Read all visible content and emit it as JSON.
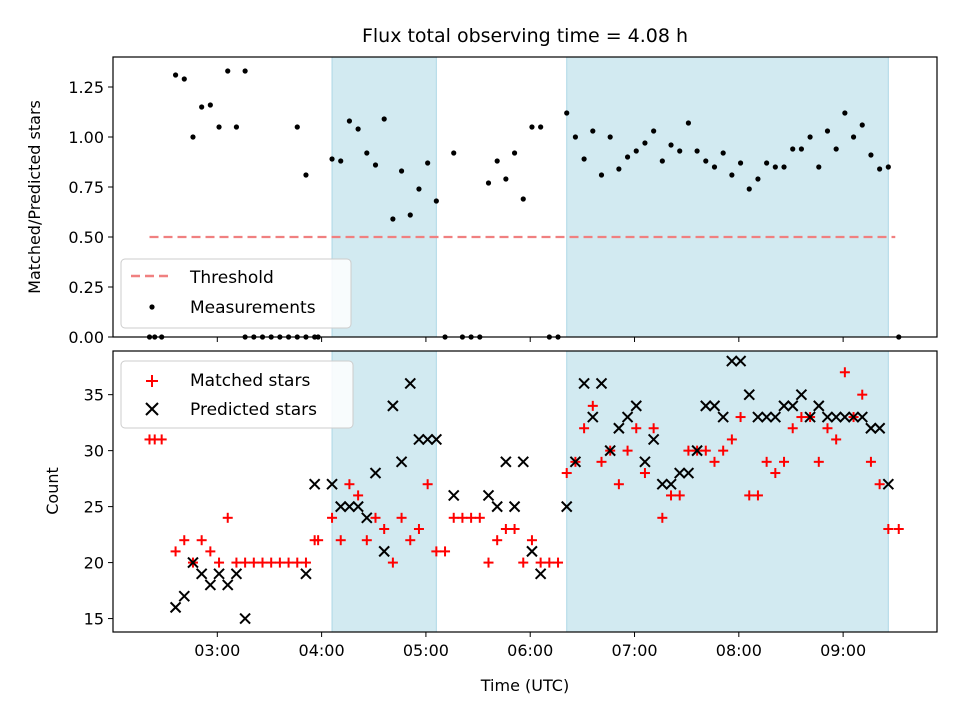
{
  "chart_data": [
    {
      "type": "scatter",
      "title": "Flux total observing time = 4.08 h",
      "xlabel": "",
      "ylabel": "Matched/Predicted stars",
      "ylim": [
        0,
        1.4
      ],
      "xlim": [
        "02:00",
        "09:54"
      ],
      "yticks": [
        "0.00",
        "0.25",
        "0.50",
        "0.75",
        "1.00",
        "1.25"
      ],
      "grid": false,
      "legend_position": "lower-left",
      "shaded_intervals": [
        [
          "04:06",
          "05:06"
        ],
        [
          "06:21",
          "09:26"
        ]
      ],
      "threshold": {
        "name": "Threshold",
        "value": 0.5,
        "x_start": "02:21",
        "x_end": "09:30",
        "color": "#f08080"
      },
      "series": [
        {
          "name": "Measurements",
          "color": "#000000",
          "points": [
            [
              "02:21",
              0
            ],
            [
              "02:24",
              0
            ],
            [
              "02:28",
              0
            ],
            [
              "02:36",
              1.31
            ],
            [
              "02:41",
              1.29
            ],
            [
              "02:46",
              1.0
            ],
            [
              "02:51",
              1.15
            ],
            [
              "02:56",
              1.16
            ],
            [
              "03:01",
              1.05
            ],
            [
              "03:06",
              1.33
            ],
            [
              "03:11",
              1.05
            ],
            [
              "03:16",
              1.33
            ],
            [
              "03:16",
              0
            ],
            [
              "03:21",
              0
            ],
            [
              "03:26",
              0
            ],
            [
              "03:31",
              0
            ],
            [
              "03:36",
              0
            ],
            [
              "03:41",
              0
            ],
            [
              "03:46",
              0
            ],
            [
              "03:51",
              0
            ],
            [
              "03:56",
              0
            ],
            [
              "03:58",
              0
            ],
            [
              "03:46",
              1.05
            ],
            [
              "03:51",
              0.81
            ],
            [
              "04:06",
              0.89
            ],
            [
              "04:11",
              0.88
            ],
            [
              "04:16",
              1.08
            ],
            [
              "04:21",
              1.04
            ],
            [
              "04:26",
              0.92
            ],
            [
              "04:31",
              0.86
            ],
            [
              "04:36",
              1.09
            ],
            [
              "04:41",
              0.59
            ],
            [
              "04:46",
              0.83
            ],
            [
              "04:51",
              0.61
            ],
            [
              "04:56",
              0.74
            ],
            [
              "05:01",
              0.87
            ],
            [
              "05:06",
              0.68
            ],
            [
              "05:11",
              0
            ],
            [
              "05:16",
              0.92
            ],
            [
              "05:21",
              0
            ],
            [
              "05:26",
              0
            ],
            [
              "05:31",
              0
            ],
            [
              "05:36",
              0.77
            ],
            [
              "05:41",
              0.88
            ],
            [
              "05:46",
              0.79
            ],
            [
              "05:51",
              0.92
            ],
            [
              "05:56",
              0.69
            ],
            [
              "06:01",
              1.05
            ],
            [
              "06:06",
              1.05
            ],
            [
              "06:11",
              0
            ],
            [
              "06:16",
              0
            ],
            [
              "06:21",
              1.12
            ],
            [
              "06:26",
              1.0
            ],
            [
              "06:31",
              0.89
            ],
            [
              "06:36",
              1.03
            ],
            [
              "06:41",
              0.81
            ],
            [
              "06:46",
              1.0
            ],
            [
              "06:51",
              0.84
            ],
            [
              "06:56",
              0.9
            ],
            [
              "07:01",
              0.93
            ],
            [
              "07:06",
              0.97
            ],
            [
              "07:11",
              1.03
            ],
            [
              "07:16",
              0.88
            ],
            [
              "07:21",
              0.96
            ],
            [
              "07:26",
              0.93
            ],
            [
              "07:31",
              1.07
            ],
            [
              "07:36",
              0.93
            ],
            [
              "07:41",
              0.88
            ],
            [
              "07:46",
              0.85
            ],
            [
              "07:51",
              0.92
            ],
            [
              "07:56",
              0.81
            ],
            [
              "08:01",
              0.87
            ],
            [
              "08:06",
              0.74
            ],
            [
              "08:11",
              0.79
            ],
            [
              "08:16",
              0.87
            ],
            [
              "08:21",
              0.85
            ],
            [
              "08:26",
              0.85
            ],
            [
              "08:31",
              0.94
            ],
            [
              "08:36",
              0.94
            ],
            [
              "08:41",
              1.0
            ],
            [
              "08:46",
              0.85
            ],
            [
              "08:51",
              1.03
            ],
            [
              "08:56",
              0.94
            ],
            [
              "09:01",
              1.12
            ],
            [
              "09:06",
              1.0
            ],
            [
              "09:11",
              1.06
            ],
            [
              "09:16",
              0.91
            ],
            [
              "09:21",
              0.84
            ],
            [
              "09:26",
              0.85
            ],
            [
              "09:32",
              0
            ]
          ]
        }
      ]
    },
    {
      "type": "scatter",
      "title": "",
      "xlabel": "Time (UTC)",
      "ylabel": "Count",
      "ylim": [
        13.8,
        38.9
      ],
      "xlim": [
        "02:00",
        "09:54"
      ],
      "yticks": [
        "15",
        "20",
        "25",
        "30",
        "35"
      ],
      "xticks": [
        "03:00",
        "04:00",
        "05:00",
        "06:00",
        "07:00",
        "08:00",
        "09:00"
      ],
      "grid": false,
      "legend_position": "upper-left",
      "shaded_intervals": [
        [
          "04:06",
          "05:06"
        ],
        [
          "06:21",
          "09:26"
        ]
      ],
      "series": [
        {
          "name": "Matched stars",
          "marker": "plus",
          "color": "#ff0000",
          "points": [
            [
              "02:21",
              31
            ],
            [
              "02:24",
              31
            ],
            [
              "02:28",
              31
            ],
            [
              "02:36",
              21
            ],
            [
              "02:41",
              22
            ],
            [
              "02:46",
              20
            ],
            [
              "02:51",
              22
            ],
            [
              "02:56",
              21
            ],
            [
              "03:01",
              20
            ],
            [
              "03:06",
              24
            ],
            [
              "03:11",
              20
            ],
            [
              "03:16",
              20
            ],
            [
              "03:21",
              20
            ],
            [
              "03:26",
              20
            ],
            [
              "03:31",
              20
            ],
            [
              "03:36",
              20
            ],
            [
              "03:41",
              20
            ],
            [
              "03:46",
              20
            ],
            [
              "03:51",
              20
            ],
            [
              "03:56",
              22
            ],
            [
              "03:58",
              22
            ],
            [
              "04:06",
              24
            ],
            [
              "04:11",
              22
            ],
            [
              "04:16",
              27
            ],
            [
              "04:21",
              26
            ],
            [
              "04:26",
              22
            ],
            [
              "04:31",
              24
            ],
            [
              "04:36",
              23
            ],
            [
              "04:41",
              20
            ],
            [
              "04:46",
              24
            ],
            [
              "04:51",
              22
            ],
            [
              "04:56",
              23
            ],
            [
              "05:01",
              27
            ],
            [
              "05:06",
              21
            ],
            [
              "05:11",
              21
            ],
            [
              "05:16",
              24
            ],
            [
              "05:21",
              24
            ],
            [
              "05:26",
              24
            ],
            [
              "05:31",
              24
            ],
            [
              "05:36",
              20
            ],
            [
              "05:41",
              22
            ],
            [
              "05:46",
              23
            ],
            [
              "05:51",
              23
            ],
            [
              "05:56",
              20
            ],
            [
              "06:01",
              22
            ],
            [
              "06:06",
              20
            ],
            [
              "06:11",
              20
            ],
            [
              "06:16",
              20
            ],
            [
              "06:21",
              28
            ],
            [
              "06:26",
              29
            ],
            [
              "06:31",
              32
            ],
            [
              "06:36",
              34
            ],
            [
              "06:41",
              29
            ],
            [
              "06:46",
              30
            ],
            [
              "06:51",
              27
            ],
            [
              "06:56",
              30
            ],
            [
              "07:01",
              32
            ],
            [
              "07:06",
              28
            ],
            [
              "07:11",
              32
            ],
            [
              "07:16",
              24
            ],
            [
              "07:21",
              26
            ],
            [
              "07:26",
              26
            ],
            [
              "07:31",
              30
            ],
            [
              "07:36",
              30
            ],
            [
              "07:41",
              30
            ],
            [
              "07:46",
              29
            ],
            [
              "07:51",
              30
            ],
            [
              "07:56",
              31
            ],
            [
              "08:01",
              33
            ],
            [
              "08:06",
              26
            ],
            [
              "08:11",
              26
            ],
            [
              "08:16",
              29
            ],
            [
              "08:21",
              28
            ],
            [
              "08:26",
              29
            ],
            [
              "08:31",
              32
            ],
            [
              "08:36",
              33
            ],
            [
              "08:41",
              33
            ],
            [
              "08:46",
              29
            ],
            [
              "08:51",
              32
            ],
            [
              "08:56",
              31
            ],
            [
              "09:01",
              37
            ],
            [
              "09:06",
              33
            ],
            [
              "09:11",
              35
            ],
            [
              "09:16",
              29
            ],
            [
              "09:21",
              27
            ],
            [
              "09:26",
              23
            ],
            [
              "09:32",
              23
            ]
          ]
        },
        {
          "name": "Predicted stars",
          "marker": "x",
          "color": "#000000",
          "points": [
            [
              "02:36",
              16
            ],
            [
              "02:41",
              17
            ],
            [
              "02:46",
              20
            ],
            [
              "02:51",
              19
            ],
            [
              "02:56",
              18
            ],
            [
              "03:01",
              19
            ],
            [
              "03:06",
              18
            ],
            [
              "03:11",
              19
            ],
            [
              "03:16",
              15
            ],
            [
              "03:51",
              19
            ],
            [
              "03:56",
              27
            ],
            [
              "04:06",
              27
            ],
            [
              "04:11",
              25
            ],
            [
              "04:16",
              25
            ],
            [
              "04:21",
              25
            ],
            [
              "04:26",
              24
            ],
            [
              "04:31",
              28
            ],
            [
              "04:36",
              21
            ],
            [
              "04:41",
              34
            ],
            [
              "04:46",
              29
            ],
            [
              "04:51",
              36
            ],
            [
              "04:56",
              31
            ],
            [
              "05:01",
              31
            ],
            [
              "05:06",
              31
            ],
            [
              "05:16",
              26
            ],
            [
              "05:36",
              26
            ],
            [
              "05:41",
              25
            ],
            [
              "05:46",
              29
            ],
            [
              "05:51",
              25
            ],
            [
              "05:56",
              29
            ],
            [
              "06:01",
              21
            ],
            [
              "06:06",
              19
            ],
            [
              "06:21",
              25
            ],
            [
              "06:26",
              29
            ],
            [
              "06:31",
              36
            ],
            [
              "06:36",
              33
            ],
            [
              "06:41",
              36
            ],
            [
              "06:46",
              30
            ],
            [
              "06:51",
              32
            ],
            [
              "06:56",
              33
            ],
            [
              "07:01",
              34
            ],
            [
              "07:06",
              29
            ],
            [
              "07:11",
              31
            ],
            [
              "07:16",
              27
            ],
            [
              "07:21",
              27
            ],
            [
              "07:26",
              28
            ],
            [
              "07:31",
              28
            ],
            [
              "07:36",
              30
            ],
            [
              "07:41",
              34
            ],
            [
              "07:46",
              34
            ],
            [
              "07:51",
              33
            ],
            [
              "07:56",
              38
            ],
            [
              "08:01",
              38
            ],
            [
              "08:06",
              35
            ],
            [
              "08:11",
              33
            ],
            [
              "08:16",
              33
            ],
            [
              "08:21",
              33
            ],
            [
              "08:26",
              34
            ],
            [
              "08:31",
              34
            ],
            [
              "08:36",
              35
            ],
            [
              "08:41",
              33
            ],
            [
              "08:46",
              34
            ],
            [
              "08:51",
              33
            ],
            [
              "08:56",
              33
            ],
            [
              "09:01",
              33
            ],
            [
              "09:06",
              33
            ],
            [
              "09:11",
              33
            ],
            [
              "09:16",
              32
            ],
            [
              "09:21",
              32
            ],
            [
              "09:26",
              27
            ]
          ]
        }
      ]
    }
  ],
  "colors": {
    "shade": "#add8e6",
    "threshold": "#f08080",
    "matched": "#ff0000",
    "predicted": "#000000"
  }
}
